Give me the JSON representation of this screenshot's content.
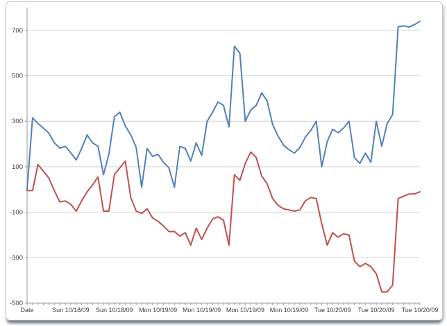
{
  "frame": {
    "background": "#ffffff",
    "border_color": "#c9c9c9",
    "shadow_color": "#58616e"
  },
  "chart_data": {
    "type": "line",
    "title": "",
    "xlabel": "",
    "ylabel": "",
    "grid": true,
    "legend": "none",
    "ylim": [
      -500,
      800
    ],
    "y_ticks": [
      700,
      500,
      300,
      100,
      -100,
      -300,
      -500
    ],
    "x_tick_labels": [
      "Date",
      "Sun 10/18/09",
      "Sun 10/18/09",
      "Mon 10/19/09",
      "Mon 10/19/09",
      "Mon 10/19/09",
      "Mon 10/19/09",
      "Tue 10/20/09",
      "Tue 10/20/09",
      "Tue 10/20/09"
    ],
    "x_tick_label_positions": [
      1,
      9,
      17,
      25,
      33,
      41,
      49,
      57,
      65,
      73
    ],
    "axis_color": "#9a9a9a",
    "gridline_color": "#d2d2d2",
    "label_color": "#3d3d3d",
    "series": [
      {
        "name": "series-blue",
        "color": "#4F81BD",
        "values": [
          0,
          315,
          290,
          270,
          248,
          205,
          182,
          190,
          162,
          130,
          180,
          240,
          205,
          190,
          65,
          155,
          320,
          340,
          280,
          240,
          185,
          10,
          180,
          145,
          155,
          120,
          95,
          10,
          190,
          180,
          125,
          205,
          150,
          300,
          340,
          385,
          370,
          275,
          630,
          600,
          300,
          350,
          370,
          425,
          390,
          285,
          235,
          195,
          175,
          160,
          185,
          230,
          260,
          300,
          100,
          210,
          265,
          250,
          270,
          300,
          140,
          115,
          160,
          120,
          300,
          190,
          290,
          330,
          715,
          720,
          715,
          725,
          740
        ]
      },
      {
        "name": "series-red",
        "color": "#C0504D",
        "values": [
          -5,
          -5,
          110,
          80,
          50,
          -5,
          -55,
          -50,
          -65,
          -95,
          -50,
          -10,
          20,
          55,
          -95,
          -95,
          65,
          95,
          125,
          -35,
          -95,
          -105,
          -85,
          -125,
          -140,
          -160,
          -185,
          -185,
          -205,
          -190,
          -245,
          -170,
          -220,
          -170,
          -130,
          -120,
          -135,
          -245,
          65,
          40,
          115,
          165,
          140,
          60,
          25,
          -40,
          -70,
          -85,
          -90,
          -95,
          -90,
          -50,
          -35,
          -40,
          -150,
          -245,
          -190,
          -210,
          -195,
          -200,
          -315,
          -340,
          -325,
          -340,
          -370,
          -450,
          -450,
          -420,
          -40,
          -30,
          -20,
          -20,
          -10
        ]
      }
    ]
  }
}
